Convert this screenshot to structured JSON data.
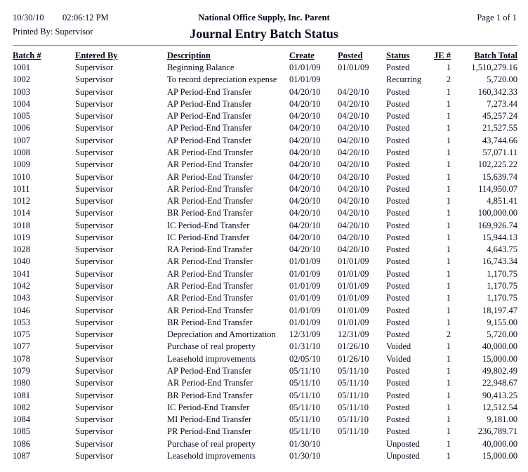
{
  "header": {
    "date": "10/30/10",
    "time": "02:06:12 PM",
    "printed_by": "Printed By: Supervisor",
    "company": "National Office Supply, Inc. Parent",
    "title": "Journal Entry Batch Status",
    "page": "Page 1 of 1"
  },
  "columns": [
    "Batch #",
    "Entered By",
    "Description",
    "Create",
    "Posted",
    "Status",
    "JE #",
    "Batch Total"
  ],
  "rows": [
    [
      "1001",
      "Supervisor",
      "Beginning Balance",
      "01/01/09",
      "01/01/09",
      "Posted",
      "1",
      "1,510,279.16"
    ],
    [
      "1002",
      "Supervisor",
      "To record depreciation expense",
      "01/01/09",
      "",
      "Recurring",
      "2",
      "5,720.00"
    ],
    [
      "1003",
      "Supervisor",
      "AP Period-End Transfer",
      "04/20/10",
      "04/20/10",
      "Posted",
      "1",
      "160,342.33"
    ],
    [
      "1004",
      "Supervisor",
      "AP Period-End Transfer",
      "04/20/10",
      "04/20/10",
      "Posted",
      "1",
      "7,273.44"
    ],
    [
      "1005",
      "Supervisor",
      "AP Period-End Transfer",
      "04/20/10",
      "04/20/10",
      "Posted",
      "1",
      "45,257.24"
    ],
    [
      "1006",
      "Supervisor",
      "AP Period-End Transfer",
      "04/20/10",
      "04/20/10",
      "Posted",
      "1",
      "21,527.55"
    ],
    [
      "1007",
      "Supervisor",
      "AP Period-End Transfer",
      "04/20/10",
      "04/20/10",
      "Posted",
      "1",
      "43,744.66"
    ],
    [
      "1008",
      "Supervisor",
      "AR Period-End Transfer",
      "04/20/10",
      "04/20/10",
      "Posted",
      "1",
      "57,071.11"
    ],
    [
      "1009",
      "Supervisor",
      "AR Period-End Transfer",
      "04/20/10",
      "04/20/10",
      "Posted",
      "1",
      "102,225.22"
    ],
    [
      "1010",
      "Supervisor",
      "AR Period-End Transfer",
      "04/20/10",
      "04/20/10",
      "Posted",
      "1",
      "15,639.74"
    ],
    [
      "1011",
      "Supervisor",
      "AR Period-End Transfer",
      "04/20/10",
      "04/20/10",
      "Posted",
      "1",
      "114,950.07"
    ],
    [
      "1012",
      "Supervisor",
      "AR Period-End Transfer",
      "04/20/10",
      "04/20/10",
      "Posted",
      "1",
      "4,851.41"
    ],
    [
      "1014",
      "Supervisor",
      "BR Period-End Transfer",
      "04/20/10",
      "04/20/10",
      "Posted",
      "1",
      "100,000.00"
    ],
    [
      "1018",
      "Supervisor",
      "IC Period-End Transfer",
      "04/20/10",
      "04/20/10",
      "Posted",
      "1",
      "169,926.74"
    ],
    [
      "1019",
      "Supervisor",
      "IC Period-End Transfer",
      "04/20/10",
      "04/20/10",
      "Posted",
      "1",
      "15,944.13"
    ],
    [
      "1028",
      "Supervisor",
      "RA Period-End Transfer",
      "04/20/10",
      "04/20/10",
      "Posted",
      "1",
      "4,643.75"
    ],
    [
      "1040",
      "Supervisor",
      "AR Period-End Transfer",
      "01/01/09",
      "01/01/09",
      "Posted",
      "1",
      "16,743.34"
    ],
    [
      "1041",
      "Supervisor",
      "AR Period-End Transfer",
      "01/01/09",
      "01/01/09",
      "Posted",
      "1",
      "1,170.75"
    ],
    [
      "1042",
      "Supervisor",
      "AR Period-End Transfer",
      "01/01/09",
      "01/01/09",
      "Posted",
      "1",
      "1,170.75"
    ],
    [
      "1043",
      "Supervisor",
      "AR Period-End Transfer",
      "01/01/09",
      "01/01/09",
      "Posted",
      "1",
      "1,170.75"
    ],
    [
      "1046",
      "Supervisor",
      "AR Period-End Transfer",
      "01/01/09",
      "01/01/09",
      "Posted",
      "1",
      "18,197.47"
    ],
    [
      "1053",
      "Supervisor",
      "BR Period-End Transfer",
      "01/01/09",
      "01/01/09",
      "Posted",
      "1",
      "9,155.00"
    ],
    [
      "1075",
      "Supervisor",
      "Depreciation and Amortization",
      "12/31/09",
      "12/31/09",
      "Posted",
      "2",
      "5,720.00"
    ],
    [
      "1077",
      "Supervisor",
      "Purchase of real property",
      "01/31/10",
      "01/26/10",
      "Voided",
      "1",
      "40,000.00"
    ],
    [
      "1078",
      "Supervisor",
      "Leasehold improvements",
      "02/05/10",
      "01/26/10",
      "Voided",
      "1",
      "15,000.00"
    ],
    [
      "1079",
      "Supervisor",
      "AP Period-End Transfer",
      "05/11/10",
      "05/11/10",
      "Posted",
      "1",
      "49,802.49"
    ],
    [
      "1080",
      "Supervisor",
      "AR Period-End Transfer",
      "05/11/10",
      "05/11/10",
      "Posted",
      "1",
      "22,948.67"
    ],
    [
      "1081",
      "Supervisor",
      "BR Period-End Transfer",
      "05/11/10",
      "05/11/10",
      "Posted",
      "1",
      "90,413.25"
    ],
    [
      "1082",
      "Supervisor",
      "IC Period-End Transfer",
      "05/11/10",
      "05/11/10",
      "Posted",
      "1",
      "12,512.54"
    ],
    [
      "1084",
      "Supervisor",
      "MI Period-End Transfer",
      "05/11/10",
      "05/11/10",
      "Posted",
      "1",
      "9,181.00"
    ],
    [
      "1085",
      "Supervisor",
      "PR Period-End Transfer",
      "05/11/10",
      "05/11/10",
      "Posted",
      "1",
      "236,789.71"
    ],
    [
      "1086",
      "Supervisor",
      "Purchase of real property",
      "01/30/10",
      "",
      "Unposted",
      "1",
      "40,000.00"
    ],
    [
      "1087",
      "Supervisor",
      "Leasehold improvements",
      "01/30/10",
      "",
      "Unposted",
      "1",
      "15,000.00"
    ]
  ]
}
